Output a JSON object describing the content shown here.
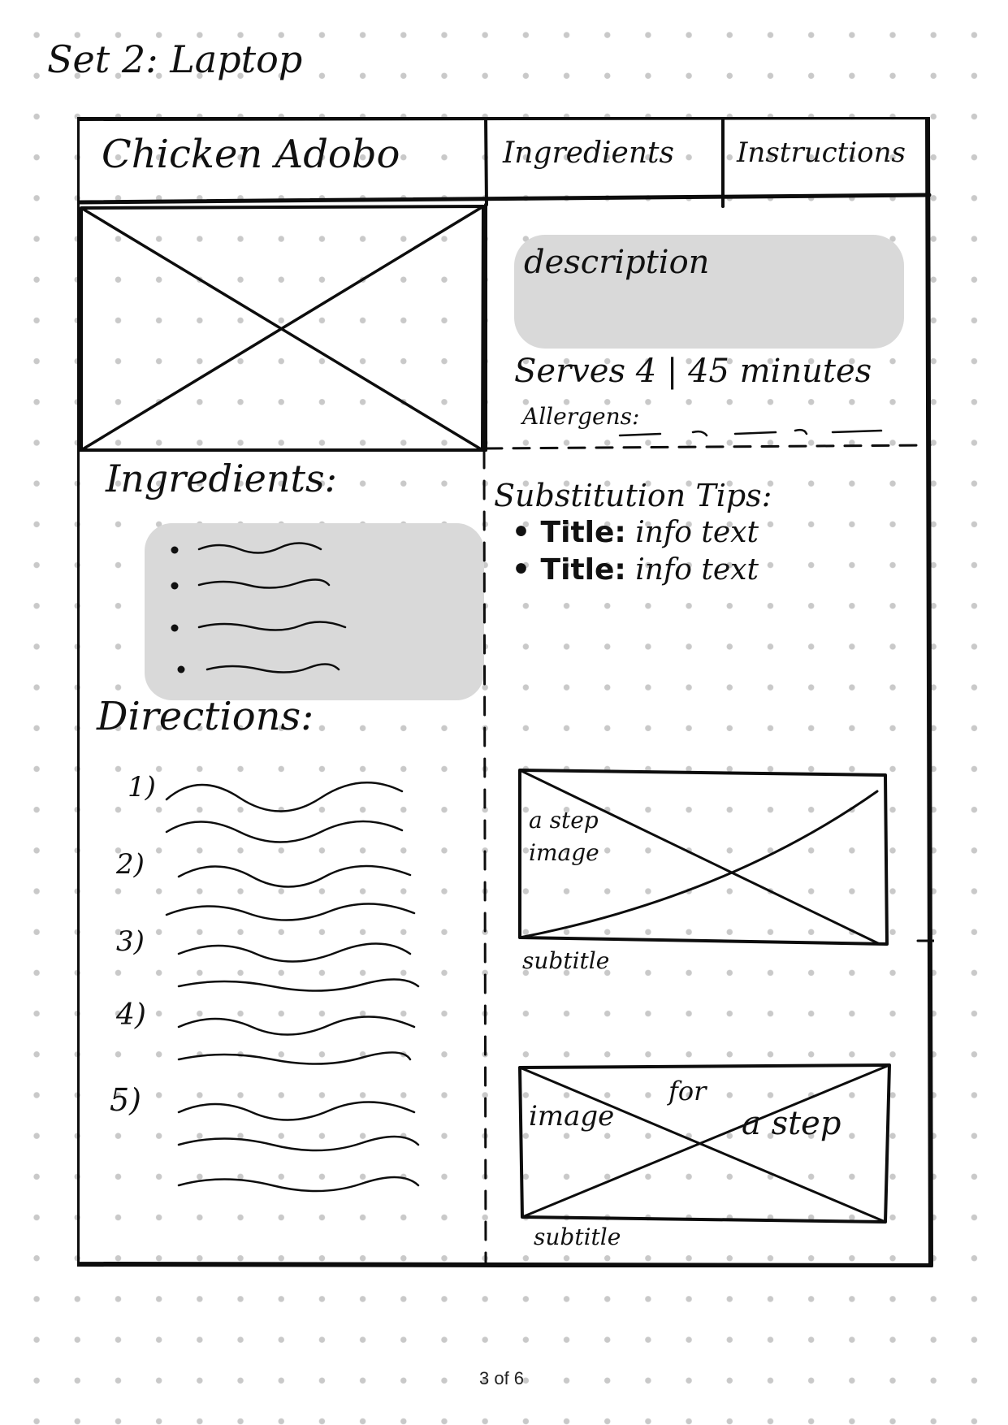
{
  "sheet": {
    "title": "Set 2: Laptop",
    "page_label": "3 of 6"
  },
  "header": {
    "recipe_title": "Chicken Adobo",
    "tabs": [
      {
        "label": "Ingredients"
      },
      {
        "label": "Instructions"
      }
    ]
  },
  "summary": {
    "description_label": "description",
    "meta": "Serves 4 | 45 minutes",
    "allergens_label": "Allergens:"
  },
  "ingredients": {
    "heading": "Ingredients:"
  },
  "directions": {
    "heading": "Directions:",
    "steps": [
      "1)",
      "2)",
      "3)",
      "4)",
      "5)"
    ]
  },
  "tips": {
    "heading": "Substitution Tips:",
    "items": [
      {
        "title": "Title:",
        "text": "info text"
      },
      {
        "title": "Title:",
        "text": "info text"
      }
    ]
  },
  "step_images": [
    {
      "label": "a step image",
      "subtitle": "subtitle"
    },
    {
      "label_parts": [
        "image",
        "for",
        "a step"
      ],
      "subtitle": "subtitle"
    }
  ]
}
